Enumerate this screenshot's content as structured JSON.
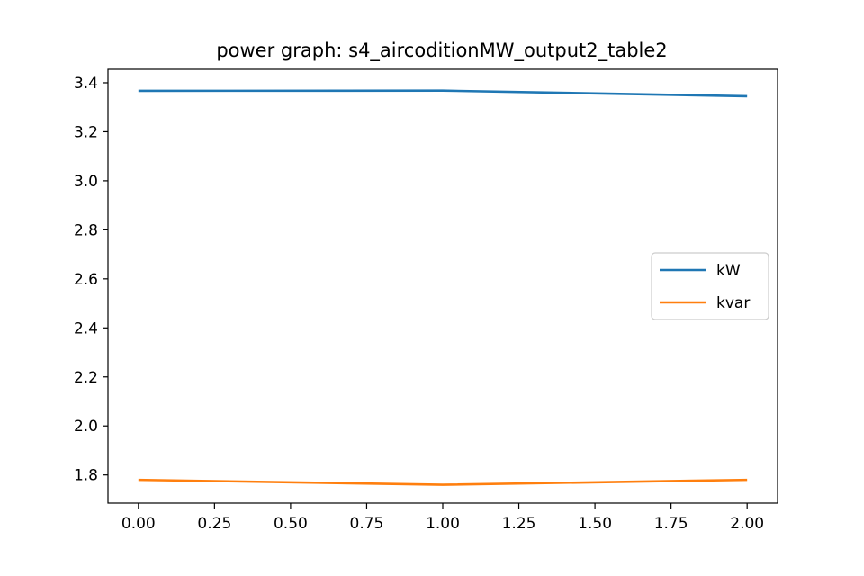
{
  "chart_data": {
    "type": "line",
    "title": "power graph: s4_aircoditionMW_output2_table2",
    "xlabel": "",
    "ylabel": "",
    "x": [
      0,
      1,
      2
    ],
    "xlim": [
      -0.1,
      2.1
    ],
    "ylim": [
      1.685,
      3.455
    ],
    "xticks": [
      "0.00",
      "0.25",
      "0.50",
      "0.75",
      "1.00",
      "1.25",
      "1.50",
      "1.75",
      "2.00"
    ],
    "yticks": [
      "1.8",
      "2.0",
      "2.2",
      "2.4",
      "2.6",
      "2.8",
      "3.0",
      "3.2",
      "3.4"
    ],
    "series": [
      {
        "name": "kW",
        "color": "#1f77b4",
        "values": [
          3.367,
          3.368,
          3.345
        ]
      },
      {
        "name": "kvar",
        "color": "#ff7f0e",
        "values": [
          1.78,
          1.76,
          1.78
        ]
      }
    ],
    "grid": false,
    "legend_position": "center-right"
  }
}
